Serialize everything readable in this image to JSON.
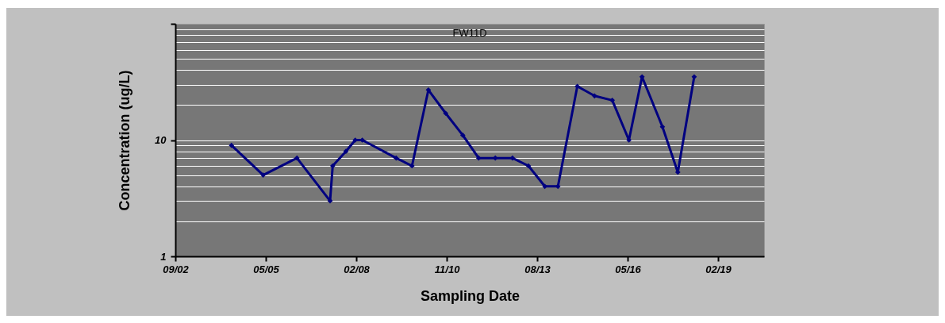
{
  "chart_data": {
    "type": "line",
    "title": "FW11D",
    "xlabel": "Sampling Date",
    "ylabel": "Concentration (ug/L)",
    "x": [
      "2004-05-17",
      "2005-05-02",
      "2006-05-10",
      "2007-05-11",
      "2007-06-09",
      "2007-11-02",
      "2008-02-13",
      "2008-05-01",
      "2009-05-10",
      "2009-11-01",
      "2010-05-01",
      "2010-11-08",
      "2011-05-16",
      "2011-11-07",
      "2012-05-09",
      "2012-11-15",
      "2013-05-10",
      "2013-11-07",
      "2014-04-01",
      "2014-11-01",
      "2015-05-10",
      "2015-11-22",
      "2016-05-24",
      "2016-10-16",
      "2017-05-29",
      "2017-11-15",
      "2018-05-15"
    ],
    "series": [
      {
        "color": "#000080",
        "values": [
          9,
          5,
          7,
          3,
          6,
          8,
          10,
          10,
          7,
          6,
          27,
          17,
          11,
          7,
          7,
          7,
          6,
          4,
          4,
          29,
          24,
          22,
          10,
          35,
          13,
          5.3,
          35
        ]
      }
    ],
    "log": "y",
    "ylim": [
      1,
      100
    ],
    "yticks": [
      1,
      10,
      {
        "value": 100,
        "label": null
      }
    ],
    "xlim": [
      "2002-09-05",
      "2020-06-25"
    ],
    "xticks": [
      {
        "value": "2002-09-05",
        "label": "09/02"
      },
      {
        "value": "2005-05-31",
        "label": "05/05"
      },
      {
        "value": "2008-02-25",
        "label": "02/08"
      },
      {
        "value": "2010-11-20",
        "label": "11/10"
      },
      {
        "value": "2013-08-15",
        "label": "08/13"
      },
      {
        "value": "2016-05-10",
        "label": "05/16"
      },
      {
        "value": "2019-02-03",
        "label": "02/19"
      }
    ],
    "grid": "y",
    "marker": "diamond",
    "line_style": "solid"
  }
}
